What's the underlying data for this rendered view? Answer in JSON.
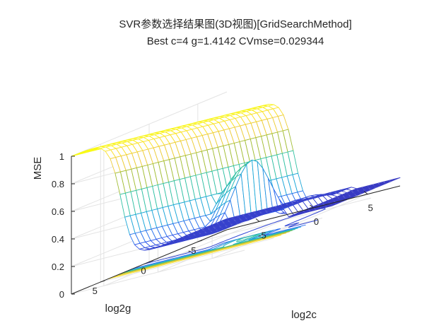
{
  "chart_data": {
    "type": "surface3d",
    "title": "SVR参数选择结果图(3D视图)[GridSearchMethod]",
    "subtitle": "Best c=4 g=1.4142 CVmse=0.029344",
    "xlabel": "log2c",
    "ylabel": "log2g",
    "zlabel": "MSE",
    "xlim": [
      -8,
      8
    ],
    "ylim": [
      -8,
      8
    ],
    "zlim": [
      0,
      1
    ],
    "xticks": [
      "-5",
      "0",
      "5"
    ],
    "yticks": [
      "5",
      "0",
      "-5"
    ],
    "zticks": [
      "0",
      "0.2",
      "0.4",
      "0.6",
      "0.8",
      "1"
    ],
    "grid": "on",
    "colormap": [
      "#3e26a8",
      "#2f5ff3",
      "#1ba9d8",
      "#34c3a0",
      "#a7be32",
      "#fbcf38",
      "#f9fb15"
    ],
    "contour_levels": [
      0.05,
      0.1,
      0.2,
      0.3,
      0.4,
      0.5,
      0.6,
      0.7,
      0.8,
      0.9
    ],
    "best": {
      "c": 4,
      "g": 1.4142,
      "mse": 0.029344
    }
  }
}
